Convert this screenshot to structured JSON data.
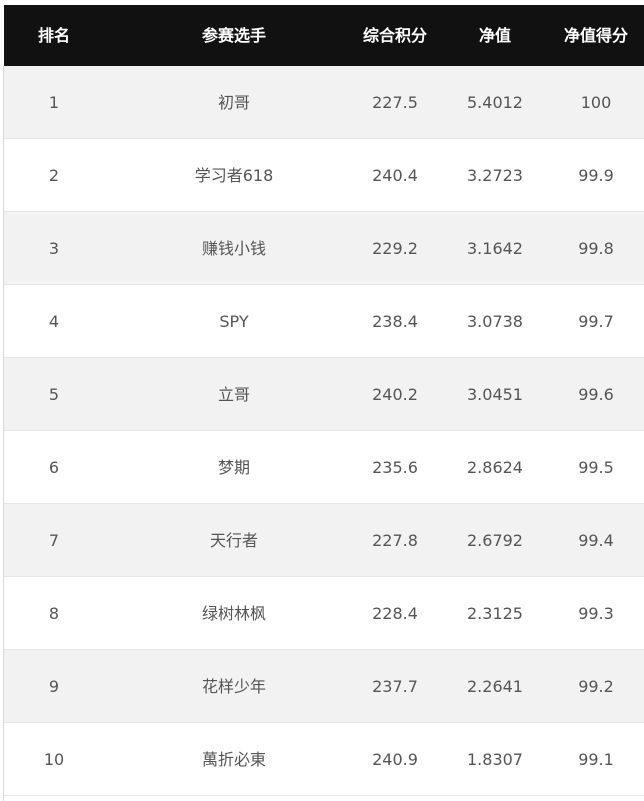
{
  "table": {
    "headers": {
      "rank": "排名",
      "player": "参赛选手",
      "composite_score": "综合积分",
      "net_value": "净值",
      "net_value_score": "净值得分"
    },
    "rows": [
      {
        "rank": "1",
        "player": "初哥",
        "composite_score": "227.5",
        "net_value": "5.4012",
        "net_value_score": "100"
      },
      {
        "rank": "2",
        "player": "学习者618",
        "composite_score": "240.4",
        "net_value": "3.2723",
        "net_value_score": "99.9"
      },
      {
        "rank": "3",
        "player": "赚钱小钱",
        "composite_score": "229.2",
        "net_value": "3.1642",
        "net_value_score": "99.8"
      },
      {
        "rank": "4",
        "player": "SPY",
        "composite_score": "238.4",
        "net_value": "3.0738",
        "net_value_score": "99.7"
      },
      {
        "rank": "5",
        "player": "立哥",
        "composite_score": "240.2",
        "net_value": "3.0451",
        "net_value_score": "99.6"
      },
      {
        "rank": "6",
        "player": "梦期",
        "composite_score": "235.6",
        "net_value": "2.8624",
        "net_value_score": "99.5"
      },
      {
        "rank": "7",
        "player": "天行者",
        "composite_score": "227.8",
        "net_value": "2.6792",
        "net_value_score": "99.4"
      },
      {
        "rank": "8",
        "player": "绿树林枫",
        "composite_score": "228.4",
        "net_value": "2.3125",
        "net_value_score": "99.3"
      },
      {
        "rank": "9",
        "player": "花样少年",
        "composite_score": "237.7",
        "net_value": "2.2641",
        "net_value_score": "99.2"
      },
      {
        "rank": "10",
        "player": "萬折必東",
        "composite_score": "240.9",
        "net_value": "1.8307",
        "net_value_score": "99.1"
      }
    ]
  },
  "colors": {
    "header_background": "#111111",
    "header_text": "#ffffff",
    "odd_row_background": "#f2f2f2",
    "even_row_background": "#ffffff",
    "body_text": "#555555"
  }
}
